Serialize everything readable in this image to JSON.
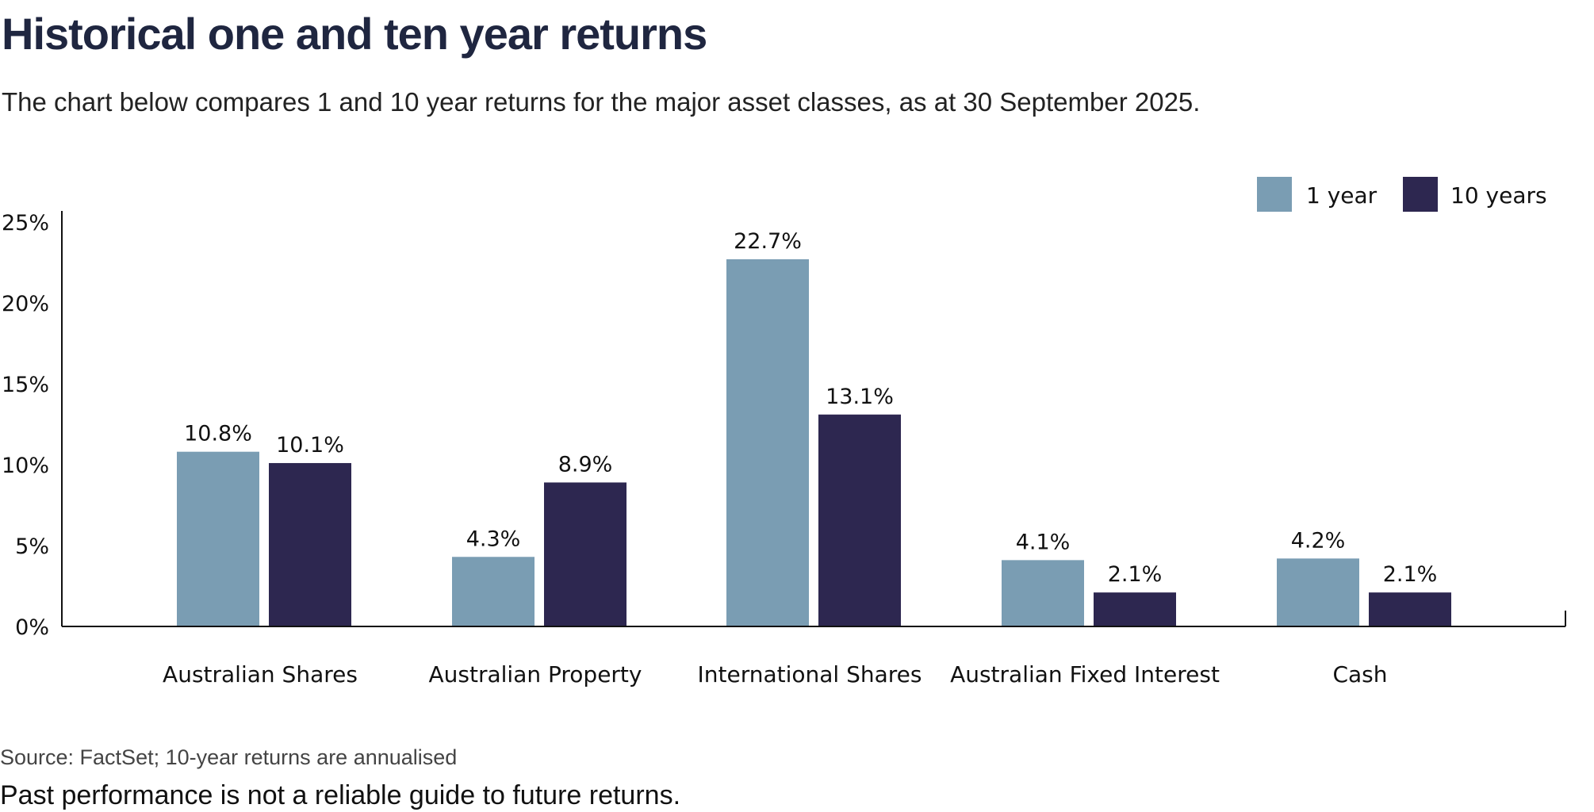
{
  "header": {
    "title": "Historical one and ten year returns",
    "subtitle": "The chart below compares 1 and 10 year returns for the major asset classes, as at 30 September 2025."
  },
  "footer": {
    "source": "Source: FactSet; 10-year returns are annualised",
    "disclaimer": "Past performance is not a reliable guide to future returns."
  },
  "chart_data": {
    "type": "bar",
    "categories": [
      "Australian Shares",
      "Australian Property",
      "International Shares",
      "Australian Fixed Interest",
      "Cash"
    ],
    "series": [
      {
        "name": "1 year",
        "color": "#7a9db3",
        "values": [
          10.8,
          4.3,
          22.7,
          4.1,
          4.2
        ],
        "labels": [
          "10.8%",
          "4.3%",
          "22.7%",
          "4.1%",
          "4.2%"
        ]
      },
      {
        "name": "10 years",
        "color": "#2d2750",
        "values": [
          10.1,
          8.9,
          13.1,
          2.1,
          2.1
        ],
        "labels": [
          "10.1%",
          "8.9%",
          "13.1%",
          "2.1%",
          "2.1%"
        ]
      }
    ],
    "ylim": [
      0,
      25
    ],
    "yticks": [
      0,
      5,
      10,
      15,
      20,
      25
    ],
    "ytick_labels": [
      "0%",
      "5%",
      "10%",
      "15%",
      "20%",
      "25%"
    ],
    "xlabel": "",
    "ylabel": "",
    "grid": false,
    "legend_position": "top-right"
  }
}
